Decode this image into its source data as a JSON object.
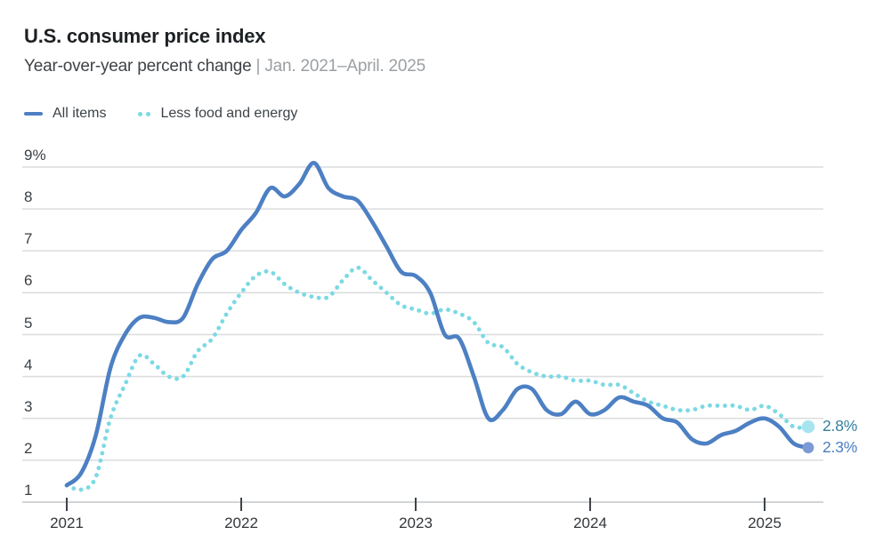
{
  "header": {
    "title": "U.S. consumer price index",
    "subtitle_main": "Year-over-year percent change ",
    "subtitle_range": "| Jan. 2021–April. 2025"
  },
  "legend": [
    {
      "label": "All items",
      "swatch": "solid-line",
      "color": "#4d80c3"
    },
    {
      "label": "Less food and energy",
      "swatch": "dotted-line",
      "color": "#7bd9e4"
    }
  ],
  "chart_data": {
    "type": "line",
    "title": "U.S. consumer price index",
    "subtitle": "Year-over-year percent change | Jan. 2021–April. 2025",
    "x_unit": "month",
    "x_start": "2021-01",
    "x_end": "2025-04",
    "x_tick_labels": [
      "2021",
      "2022",
      "2023",
      "2024",
      "2025"
    ],
    "y_ticks": [
      9,
      8,
      7,
      6,
      5,
      4,
      3,
      2,
      1
    ],
    "y_tick_labels": [
      "9%",
      "8",
      "7",
      "6",
      "5",
      "4",
      "3",
      "2",
      "1"
    ],
    "ylim": [
      1,
      9
    ],
    "grid": "horizontal",
    "legend_position": "top-left",
    "series": [
      {
        "key": "all-items",
        "name": "All items",
        "line_style": "solid",
        "color": "#4d80c3",
        "dot_color": "#7b9ad6",
        "label_color": "#4a7fc2",
        "end_label": "2.3%",
        "values": [
          1.4,
          1.7,
          2.6,
          4.2,
          5.0,
          5.4,
          5.4,
          5.3,
          5.4,
          6.2,
          6.8,
          7.0,
          7.5,
          7.9,
          8.5,
          8.3,
          8.6,
          9.1,
          8.5,
          8.3,
          8.2,
          7.7,
          7.1,
          6.5,
          6.4,
          6.0,
          5.0,
          4.9,
          4.0,
          3.0,
          3.2,
          3.7,
          3.7,
          3.2,
          3.1,
          3.4,
          3.1,
          3.2,
          3.5,
          3.4,
          3.3,
          3.0,
          2.9,
          2.5,
          2.4,
          2.6,
          2.7,
          2.9,
          3.0,
          2.8,
          2.4,
          2.3
        ]
      },
      {
        "key": "core",
        "name": "Less food and energy",
        "line_style": "dotted",
        "color": "#7bd9e4",
        "dot_color": "#a6e4ef",
        "label_color": "#35809e",
        "end_label": "2.8%",
        "values": [
          1.4,
          1.3,
          1.6,
          3.0,
          3.8,
          4.5,
          4.3,
          4.0,
          4.0,
          4.6,
          4.9,
          5.5,
          6.0,
          6.4,
          6.5,
          6.2,
          6.0,
          5.9,
          5.9,
          6.3,
          6.6,
          6.3,
          6.0,
          5.7,
          5.6,
          5.5,
          5.6,
          5.5,
          5.3,
          4.8,
          4.7,
          4.3,
          4.1,
          4.0,
          4.0,
          3.9,
          3.9,
          3.8,
          3.8,
          3.6,
          3.4,
          3.3,
          3.2,
          3.2,
          3.3,
          3.3,
          3.3,
          3.2,
          3.3,
          3.1,
          2.8,
          2.8
        ]
      }
    ]
  }
}
